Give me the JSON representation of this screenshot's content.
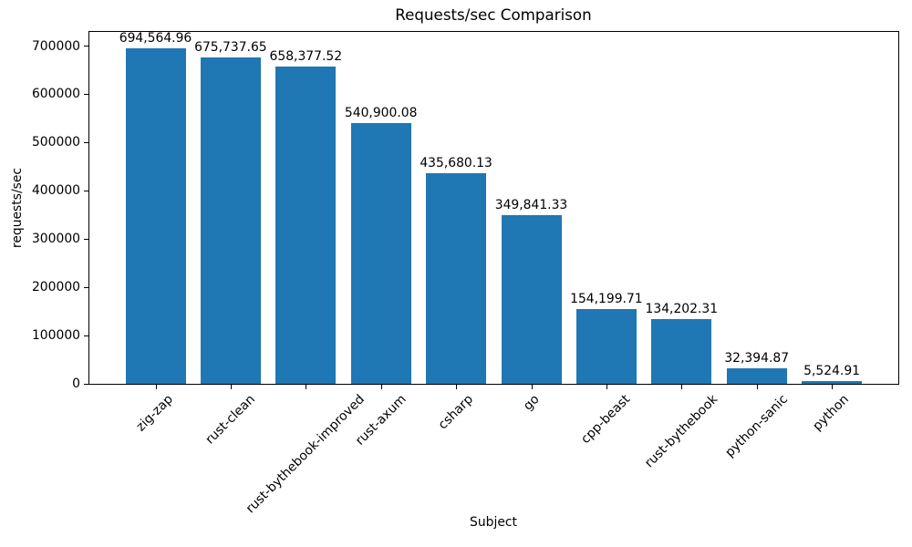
{
  "chart_data": {
    "type": "bar",
    "title": "Requests/sec Comparison",
    "xlabel": "Subject",
    "ylabel": "requests/sec",
    "categories": [
      "zig-zap",
      "rust-clean",
      "rust-bythebook-improved",
      "rust-axum",
      "csharp",
      "go",
      "cpp-beast",
      "rust-bythebook",
      "python-sanic",
      "python"
    ],
    "values": [
      694564.96,
      675737.65,
      658377.52,
      540900.08,
      435680.13,
      349841.33,
      154199.71,
      134202.31,
      32394.87,
      5524.91
    ],
    "bar_value_labels": [
      "694,564.96",
      "675,737.65",
      "658,377.52",
      "540,900.08",
      "435,680.13",
      "349,841.33",
      "154,199.71",
      "134,202.31",
      "32,394.87",
      "5,524.91"
    ],
    "bar_color": "#1f77b4",
    "ylim": [
      0,
      729293
    ],
    "yticks": [
      0,
      100000,
      200000,
      300000,
      400000,
      500000,
      600000,
      700000
    ],
    "ytick_labels": [
      "0",
      "100000",
      "200000",
      "300000",
      "400000",
      "500000",
      "600000",
      "700000"
    ],
    "grid": false,
    "legend": "none",
    "x_tick_rotation_deg": 45
  }
}
